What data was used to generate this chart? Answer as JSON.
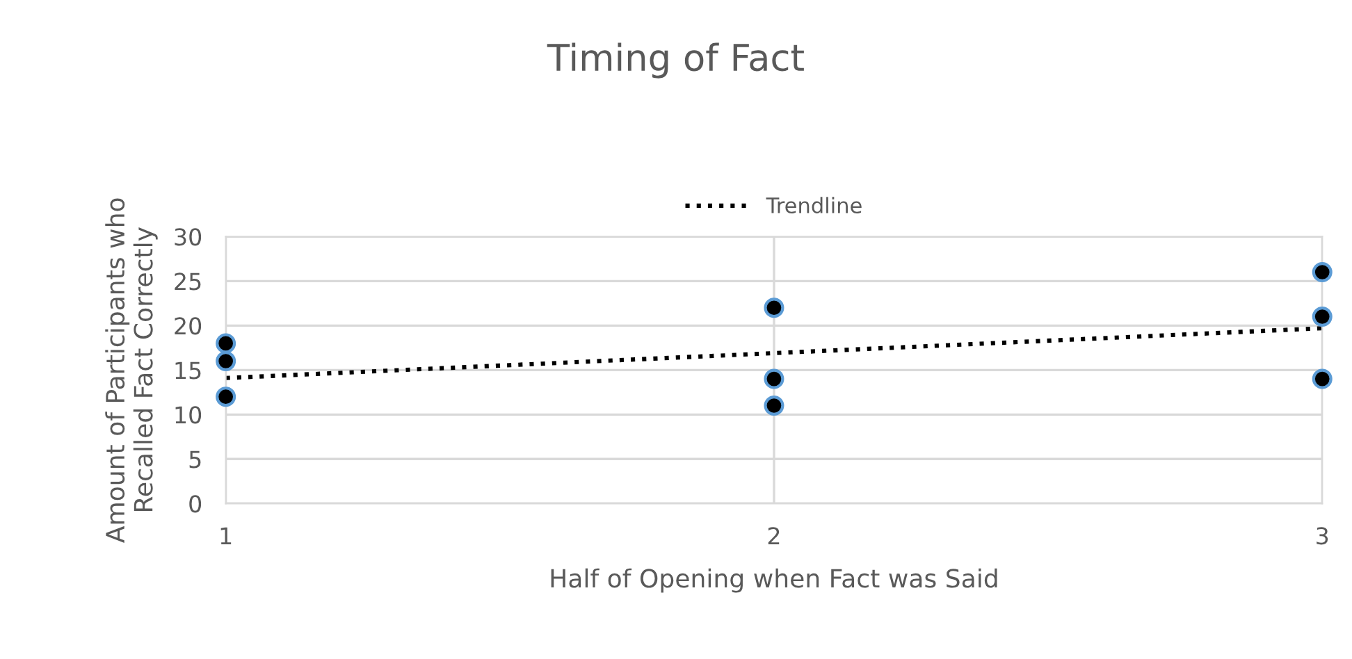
{
  "chart_data": {
    "type": "scatter",
    "title": "Timing of Fact",
    "xlabel": "Half of Opening when Fact was Said",
    "ylabel": "Amount of Participants who\nRecalled Fact Correctly",
    "series": [
      {
        "color": "#000000",
        "x": [
          1,
          1,
          1,
          2,
          2,
          2,
          3,
          3,
          3
        ],
        "values": [
          18,
          16,
          12,
          22,
          14,
          11,
          26,
          21,
          14
        ],
        "marker": "circle"
      },
      {
        "type": "line",
        "name": "Trendline",
        "color": "#000000",
        "x": [
          1,
          3
        ],
        "values": [
          14.1,
          19.7
        ],
        "line_style": "dotted",
        "marker": "none"
      }
    ],
    "xlim": [
      1,
      3
    ],
    "xticks": [
      1,
      2,
      3
    ],
    "ylim": [
      0,
      30
    ],
    "yticks": [
      0,
      5,
      10,
      15,
      20,
      25,
      30
    ],
    "grid": true,
    "legend": "top"
  }
}
